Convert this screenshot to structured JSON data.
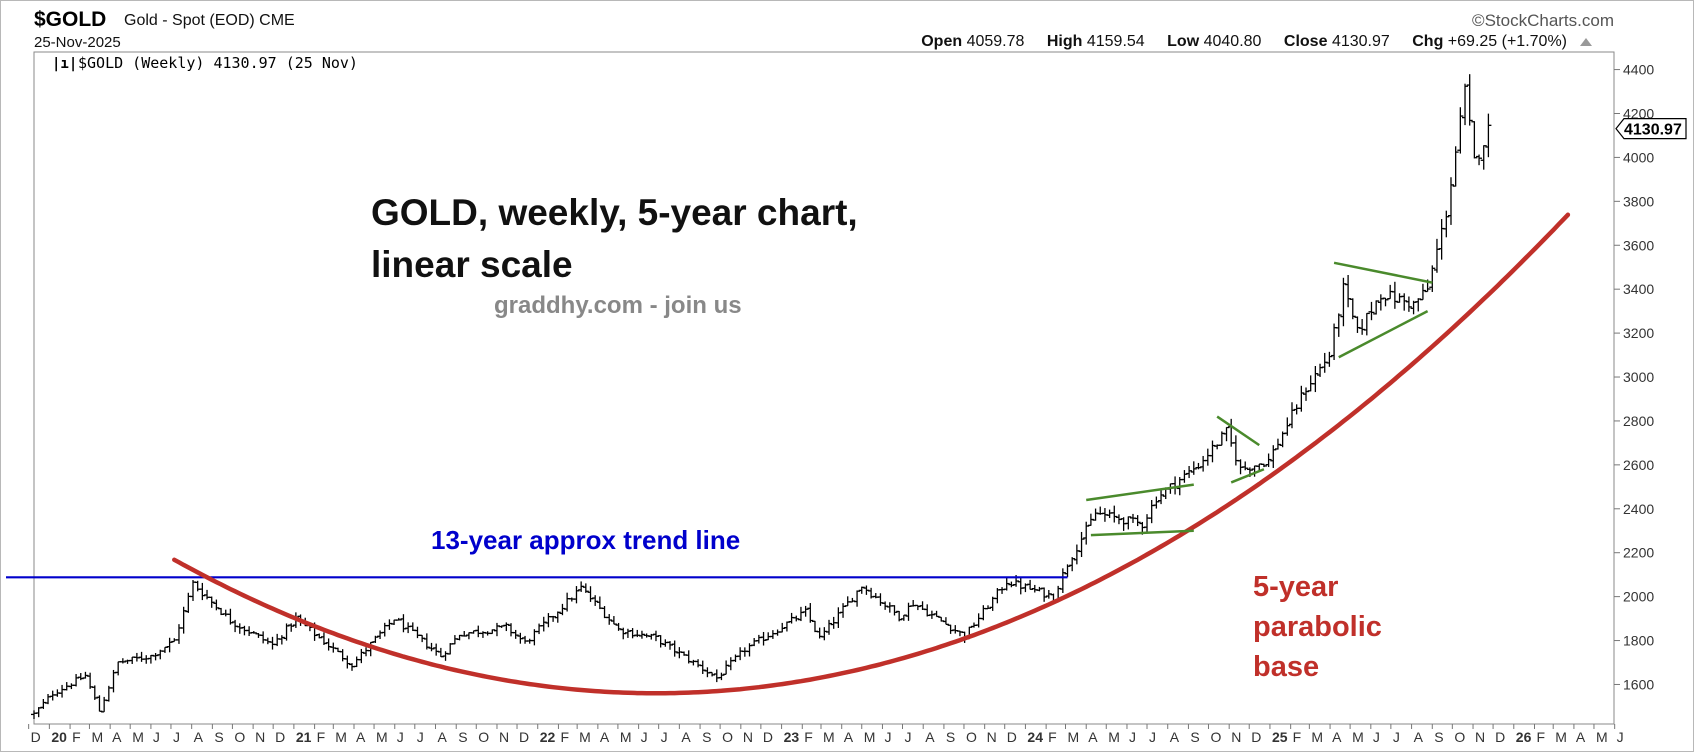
{
  "header": {
    "symbol": "$GOLD",
    "name": "Gold - Spot (EOD)",
    "exchange": "CME",
    "date": "25-Nov-2025",
    "brand": "©StockCharts.com",
    "open_label": "Open",
    "open": "4059.78",
    "high_label": "High",
    "high": "4159.54",
    "low_label": "Low",
    "low": "4040.80",
    "close_label": "Close",
    "close": "4130.97",
    "chg_label": "Chg",
    "chg": "+69.25 (+1.70%)"
  },
  "chart_data": {
    "type": "ohlc",
    "legend": "$GOLD (Weekly) 4130.97 (25 Nov)",
    "last_value_label": "4130.97",
    "annotations": {
      "title_line1": "GOLD, weekly, 5-year chart,",
      "title_line2": "linear scale",
      "source": "graddhy.com - join us",
      "trend_label": "13-year approx trend line",
      "base_label_line1": "5-year",
      "base_label_line2": "parabolic",
      "base_label_line3": "base"
    },
    "ylim": [
      1420,
      4480
    ],
    "y_ticks": [
      "1600",
      "1800",
      "2000",
      "2200",
      "2400",
      "2600",
      "2800",
      "3000",
      "3200",
      "3400",
      "3600",
      "3800",
      "4000",
      "4200",
      "4400"
    ],
    "x_range": [
      "2019-12-09",
      "2026-05-31"
    ],
    "x_ticks": [
      {
        "label": "D",
        "date": "2019-12-01"
      },
      {
        "label": "20",
        "date": "2020-01-01"
      },
      {
        "label": "F",
        "date": "2020-02-01"
      },
      {
        "label": "M",
        "date": "2020-03-01"
      },
      {
        "label": "A",
        "date": "2020-04-01"
      },
      {
        "label": "M",
        "date": "2020-05-01"
      },
      {
        "label": "J",
        "date": "2020-06-01"
      },
      {
        "label": "J",
        "date": "2020-07-01"
      },
      {
        "label": "A",
        "date": "2020-08-01"
      },
      {
        "label": "S",
        "date": "2020-09-01"
      },
      {
        "label": "O",
        "date": "2020-10-01"
      },
      {
        "label": "N",
        "date": "2020-11-01"
      },
      {
        "label": "D",
        "date": "2020-12-01"
      },
      {
        "label": "21",
        "date": "2021-01-01"
      },
      {
        "label": "F",
        "date": "2021-02-01"
      },
      {
        "label": "M",
        "date": "2021-03-01"
      },
      {
        "label": "A",
        "date": "2021-04-01"
      },
      {
        "label": "M",
        "date": "2021-05-01"
      },
      {
        "label": "J",
        "date": "2021-06-01"
      },
      {
        "label": "J",
        "date": "2021-07-01"
      },
      {
        "label": "A",
        "date": "2021-08-01"
      },
      {
        "label": "S",
        "date": "2021-09-01"
      },
      {
        "label": "O",
        "date": "2021-10-01"
      },
      {
        "label": "N",
        "date": "2021-11-01"
      },
      {
        "label": "D",
        "date": "2021-12-01"
      },
      {
        "label": "22",
        "date": "2022-01-01"
      },
      {
        "label": "F",
        "date": "2022-02-01"
      },
      {
        "label": "M",
        "date": "2022-03-01"
      },
      {
        "label": "A",
        "date": "2022-04-01"
      },
      {
        "label": "M",
        "date": "2022-05-01"
      },
      {
        "label": "J",
        "date": "2022-06-01"
      },
      {
        "label": "J",
        "date": "2022-07-01"
      },
      {
        "label": "A",
        "date": "2022-08-01"
      },
      {
        "label": "S",
        "date": "2022-09-01"
      },
      {
        "label": "O",
        "date": "2022-10-01"
      },
      {
        "label": "N",
        "date": "2022-11-01"
      },
      {
        "label": "D",
        "date": "2022-12-01"
      },
      {
        "label": "23",
        "date": "2023-01-01"
      },
      {
        "label": "F",
        "date": "2023-02-01"
      },
      {
        "label": "M",
        "date": "2023-03-01"
      },
      {
        "label": "A",
        "date": "2023-04-01"
      },
      {
        "label": "M",
        "date": "2023-05-01"
      },
      {
        "label": "J",
        "date": "2023-06-01"
      },
      {
        "label": "J",
        "date": "2023-07-01"
      },
      {
        "label": "A",
        "date": "2023-08-01"
      },
      {
        "label": "S",
        "date": "2023-09-01"
      },
      {
        "label": "O",
        "date": "2023-10-01"
      },
      {
        "label": "N",
        "date": "2023-11-01"
      },
      {
        "label": "D",
        "date": "2023-12-01"
      },
      {
        "label": "24",
        "date": "2024-01-01"
      },
      {
        "label": "F",
        "date": "2024-02-01"
      },
      {
        "label": "M",
        "date": "2024-03-01"
      },
      {
        "label": "A",
        "date": "2024-04-01"
      },
      {
        "label": "M",
        "date": "2024-05-01"
      },
      {
        "label": "J",
        "date": "2024-06-01"
      },
      {
        "label": "J",
        "date": "2024-07-01"
      },
      {
        "label": "A",
        "date": "2024-08-01"
      },
      {
        "label": "S",
        "date": "2024-09-01"
      },
      {
        "label": "O",
        "date": "2024-10-01"
      },
      {
        "label": "N",
        "date": "2024-11-01"
      },
      {
        "label": "D",
        "date": "2024-12-01"
      },
      {
        "label": "25",
        "date": "2025-01-01"
      },
      {
        "label": "F",
        "date": "2025-02-01"
      },
      {
        "label": "M",
        "date": "2025-03-01"
      },
      {
        "label": "A",
        "date": "2025-04-01"
      },
      {
        "label": "M",
        "date": "2025-05-01"
      },
      {
        "label": "J",
        "date": "2025-06-01"
      },
      {
        "label": "J",
        "date": "2025-07-01"
      },
      {
        "label": "A",
        "date": "2025-08-01"
      },
      {
        "label": "S",
        "date": "2025-09-01"
      },
      {
        "label": "O",
        "date": "2025-10-01"
      },
      {
        "label": "N",
        "date": "2025-11-01"
      },
      {
        "label": "D",
        "date": "2025-12-01"
      },
      {
        "label": "26",
        "date": "2026-01-01"
      },
      {
        "label": "F",
        "date": "2026-02-01"
      },
      {
        "label": "M",
        "date": "2026-03-01"
      },
      {
        "label": "A",
        "date": "2026-04-01"
      },
      {
        "label": "M",
        "date": "2026-05-01"
      },
      {
        "label": "J",
        "date": "2026-06-01"
      }
    ],
    "price_path": [
      [
        "2019-12-09",
        1465
      ],
      [
        "2020-01-06",
        1560
      ],
      [
        "2020-02-24",
        1640
      ],
      [
        "2020-03-16",
        1480
      ],
      [
        "2020-04-13",
        1700
      ],
      [
        "2020-06-01",
        1730
      ],
      [
        "2020-07-06",
        1800
      ],
      [
        "2020-08-03",
        2060
      ],
      [
        "2020-09-28",
        1890
      ],
      [
        "2020-11-30",
        1780
      ],
      [
        "2021-01-04",
        1900
      ],
      [
        "2021-03-29",
        1690
      ],
      [
        "2021-05-31",
        1900
      ],
      [
        "2021-08-09",
        1730
      ],
      [
        "2021-09-06",
        1830
      ],
      [
        "2021-11-15",
        1860
      ],
      [
        "2021-12-13",
        1790
      ],
      [
        "2022-03-07",
        2040
      ],
      [
        "2022-05-02",
        1850
      ],
      [
        "2022-06-27",
        1810
      ],
      [
        "2022-09-26",
        1630
      ],
      [
        "2022-11-07",
        1760
      ],
      [
        "2023-02-06",
        1930
      ],
      [
        "2023-02-27",
        1810
      ],
      [
        "2023-05-01",
        2050
      ],
      [
        "2023-06-26",
        1910
      ],
      [
        "2023-07-17",
        1970
      ],
      [
        "2023-10-02",
        1820
      ],
      [
        "2023-12-04",
        2070
      ],
      [
        "2024-02-12",
        2000
      ],
      [
        "2024-03-04",
        2150
      ],
      [
        "2024-04-15",
        2380
      ],
      [
        "2024-06-24",
        2330
      ],
      [
        "2024-07-15",
        2450
      ],
      [
        "2024-09-16",
        2600
      ],
      [
        "2024-10-28",
        2750
      ],
      [
        "2024-11-18",
        2580
      ],
      [
        "2024-12-30",
        2620
      ],
      [
        "2025-02-24",
        2950
      ],
      [
        "2025-03-31",
        3100
      ],
      [
        "2025-04-21",
        3400
      ],
      [
        "2025-05-12",
        3200
      ],
      [
        "2025-06-16",
        3380
      ],
      [
        "2025-08-04",
        3330
      ],
      [
        "2025-08-25",
        3400
      ],
      [
        "2025-09-22",
        3750
      ],
      [
        "2025-10-20",
        4300
      ],
      [
        "2025-11-03",
        3980
      ],
      [
        "2025-11-25",
        4130
      ]
    ],
    "trend_line": {
      "color": "#0000cc",
      "y": 2088,
      "from": "2019-12-09",
      "to": "2024-03-04"
    },
    "parabola": {
      "color": "#c0302a",
      "vertex_date": "2022-06-27",
      "vertex_y": 1560,
      "from": "2020-07-06",
      "to": "2026-03-23",
      "coefficient": 156
    },
    "pennants": [
      {
        "top": [
          [
            "2024-04-01",
            2440
          ],
          [
            "2024-09-09",
            2510
          ]
        ],
        "bottom": [
          [
            "2024-04-08",
            2280
          ],
          [
            "2024-09-09",
            2300
          ]
        ]
      },
      {
        "top": [
          [
            "2024-10-14",
            2820
          ],
          [
            "2024-12-16",
            2690
          ]
        ],
        "bottom": [
          [
            "2024-11-04",
            2520
          ],
          [
            "2024-12-23",
            2580
          ]
        ]
      },
      {
        "top": [
          [
            "2025-04-07",
            3520
          ],
          [
            "2025-09-01",
            3430
          ]
        ],
        "bottom": [
          [
            "2025-04-14",
            3090
          ],
          [
            "2025-08-25",
            3300
          ]
        ]
      }
    ],
    "colors": {
      "bars": "#000000",
      "pennant": "#4a8a2c",
      "axis_text": "#333333"
    }
  }
}
